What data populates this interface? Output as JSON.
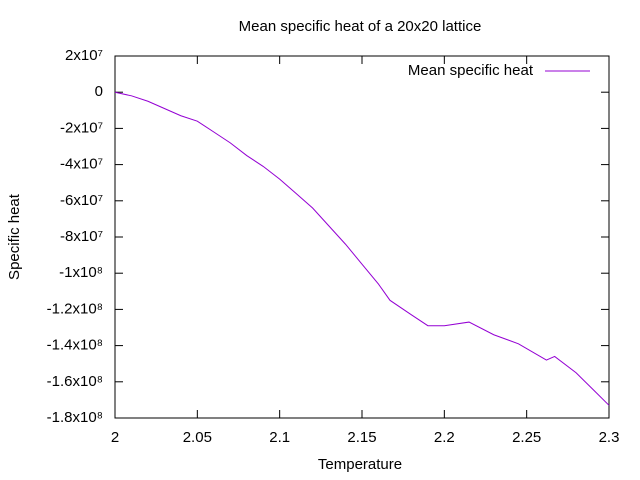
{
  "chart_data": {
    "type": "line",
    "title": "Mean specific heat of a 20x20 lattice",
    "x_label": "Temperature",
    "y_label": "Specific heat",
    "x": [
      2.0,
      2.01,
      2.02,
      2.03,
      2.04,
      2.05,
      2.06,
      2.07,
      2.08,
      2.09,
      2.1,
      2.11,
      2.12,
      2.13,
      2.14,
      2.15,
      2.16,
      2.167,
      2.18,
      2.19,
      2.2,
      2.215,
      2.23,
      2.245,
      2.262,
      2.267,
      2.28,
      2.29,
      2.3
    ],
    "series": [
      {
        "name": "Mean specific heat",
        "color": "#9400d3",
        "values": [
          0,
          -2000000,
          -5000000,
          -9000000,
          -13000000,
          -16000000,
          -22000000,
          -28000000,
          -35000000,
          -41000000,
          -48000000,
          -56000000,
          -64000000,
          -74000000,
          -84000000,
          -95000000,
          -106000000,
          -115000000,
          -123000000,
          -129000000,
          -129000000,
          -127000000,
          -134000000,
          -139000000,
          -148000000,
          -146000000,
          -155000000,
          -164000000,
          -173000000
        ]
      }
    ],
    "xlim": [
      2,
      2.3
    ],
    "xticks": [
      2,
      2.05,
      2.1,
      2.15,
      2.2,
      2.25,
      2.3
    ],
    "ylim": [
      -180000000,
      20000000
    ],
    "yticks": [
      {
        "value": 20000000,
        "label": "2x10⁷"
      },
      0,
      {
        "value": -20000000,
        "label": "-2x10⁷"
      },
      {
        "value": -40000000,
        "label": "-4x10⁷"
      },
      {
        "value": -60000000,
        "label": "-6x10⁷"
      },
      {
        "value": -80000000,
        "label": "-8x10⁷"
      },
      {
        "value": -100000000,
        "label": "-1x10⁸"
      },
      {
        "value": -120000000,
        "label": "-1.2x10⁸"
      },
      {
        "value": -140000000,
        "label": "-1.4x10⁸"
      },
      {
        "value": -160000000,
        "label": "-1.6x10⁸"
      },
      {
        "value": -180000000,
        "label": "-1.8x10⁸"
      }
    ],
    "legend": "top-right"
  }
}
